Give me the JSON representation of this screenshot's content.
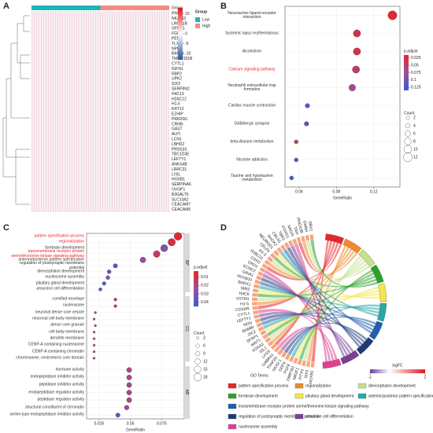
{
  "chart_data": [
    {
      "type": "heatmap",
      "label": "A",
      "rows": [
        "PRG4",
        "NKAIN3",
        "LRRC17",
        "GFRA1",
        "FGF8",
        "PENK",
        "TLX1",
        "NPPC",
        "BAMBI",
        "TMEM151B",
        "CYTL1",
        "IGFN1",
        "RBP2",
        "UPK2",
        "SIX3",
        "SERPINI2",
        "H4C13",
        "H2AC12",
        "H1-5",
        "KRT12",
        "EZHIP",
        "PRR20G",
        "CRNN",
        "GAST",
        "ALPI",
        "LCN1",
        "LBHD2",
        "PRSS33",
        "TBC1D3E",
        "LEFTY1",
        "ANKS4B",
        "LRRC31",
        "LY6L",
        "HOXB1",
        "SERPINA6",
        "OVGP1",
        "B3GALT5",
        "SLC13A2",
        "CEACAM7",
        "CEACAM5"
      ],
      "annotation": "Group",
      "legend_title": "Group",
      "groups": [
        {
          "name": "Low",
          "color": "#1fb4b5"
        },
        {
          "name": "High",
          "color": "#f28c84"
        }
      ],
      "clim": [
        -13,
        13
      ],
      "color_ticks": [
        10,
        5,
        0,
        -5,
        -10
      ]
    },
    {
      "type": "dot",
      "label": "B",
      "xlabel": "GeneRatio",
      "xlim": [
        0.025,
        0.148
      ],
      "xticks": [
        0.04,
        0.08,
        0.12
      ],
      "categories": [
        "Neuroactive ligand-receptor interaction",
        "Systemic lupus erythematosus",
        "Alcoholism",
        "Calcium signaling pathway",
        "Neutrophil extracellular trap formation",
        "Cardiac muscle contraction",
        "GABAergic synapse",
        "beta-Alanine metabolism",
        "Nicotine addiction",
        "Taurine and hypotaurine metabolism"
      ],
      "category_colors": [
        "#333",
        "#333",
        "#333",
        "#e8262a",
        "#333",
        "#333",
        "#333",
        "#333",
        "#333",
        "#333"
      ],
      "values": [
        0.14,
        0.102,
        0.102,
        0.101,
        0.097,
        0.049,
        0.048,
        0.037,
        0.037,
        0.032
      ],
      "counts": [
        12,
        9,
        9,
        9,
        8,
        4,
        4,
        3,
        3,
        3
      ],
      "padj": [
        0.01,
        0.03,
        0.03,
        0.05,
        0.07,
        0.12,
        0.12,
        0.06,
        0.12,
        0.13
      ],
      "color_title": "p.adjust",
      "clim": [
        0.015,
        0.135
      ],
      "color_ticks": [
        0.025,
        0.05,
        0.075,
        0.1,
        0.125
      ],
      "size_title": "Count",
      "size_ticks": [
        2,
        4,
        6,
        8,
        10,
        12
      ]
    },
    {
      "type": "dot-facet",
      "label": "C",
      "xlabel": "GeneRatio",
      "xlim": [
        0.015,
        0.093
      ],
      "xticks": [
        0.025,
        0.05,
        0.075
      ],
      "facets": [
        {
          "name": "BP",
          "categories": [
            "pattern specification process",
            "regionalization",
            "forebrain development",
            "transmembrane receptor protein serine/threonine kinase signaling pathway",
            "anterior/posterior pattern specification",
            "regulation of postsynaptic membrane potential",
            "diencephalon development",
            "nucleosome assembly",
            "pituitary gland development",
            "amacrine cell differentiation"
          ],
          "category_colors": [
            "#e8262a",
            "#e8262a",
            "#333",
            "#e8262a",
            "#333",
            "#333",
            "#333",
            "#333",
            "#333",
            "#333"
          ],
          "values": [
            0.088,
            0.083,
            0.077,
            0.071,
            0.06,
            0.038,
            0.033,
            0.032,
            0.029,
            0.026
          ],
          "counts": [
            18,
            17,
            16,
            15,
            12,
            8,
            7,
            7,
            6,
            5
          ],
          "padj": [
            0.004,
            0.008,
            0.03,
            0.012,
            0.025,
            0.04,
            0.035,
            0.03,
            0.042,
            0.04
          ]
        },
        {
          "name": "CC",
          "categories": [
            "cornified envelope",
            "nucleosome",
            "neuronal dense core vesicle",
            "neuronal cell body membrane",
            "dense core granule",
            "cell body membrane",
            "dendrite membrane",
            "CENP-A containing nucleosome",
            "CENP-A containing chromatin",
            "chromosome, centromeric core domain"
          ],
          "category_colors": [
            "#333",
            "#333",
            "#333",
            "#333",
            "#333",
            "#333",
            "#333",
            "#333",
            "#333",
            "#333"
          ],
          "values": [
            0.038,
            0.038,
            0.022,
            0.021,
            0.022,
            0.021,
            0.021,
            0.021,
            0.021,
            0.021
          ],
          "counts": [
            4,
            4,
            2,
            2,
            2,
            2,
            2,
            2,
            2,
            2
          ],
          "padj": [
            0.012,
            0.012,
            0.02,
            0.02,
            0.02,
            0.02,
            0.02,
            0.02,
            0.02,
            0.02
          ]
        },
        {
          "name": "MF",
          "categories": [
            "hormone activity",
            "endopeptidase inhibitor activity",
            "peptidase inhibitor activity",
            "endopeptidase regulator activity",
            "peptidase regulator activity",
            "structural constituent of chromatin",
            "serine-type endopeptidase inhibitor activity"
          ],
          "category_colors": [
            "#333",
            "#333",
            "#333",
            "#333",
            "#333",
            "#333",
            "#333"
          ],
          "values": [
            0.049,
            0.049,
            0.049,
            0.049,
            0.049,
            0.047,
            0.04
          ],
          "counts": [
            10,
            10,
            10,
            10,
            10,
            9,
            8
          ],
          "padj": [
            0.02,
            0.02,
            0.02,
            0.02,
            0.02,
            0.022,
            0.04
          ]
        }
      ],
      "color_title": "p.adjust",
      "clim": [
        0.003,
        0.045
      ],
      "color_ticks": [
        0.01,
        0.02,
        0.03,
        0.04
      ],
      "size_title": "Count",
      "size_ticks": [
        3,
        6,
        9,
        12,
        15,
        18
      ]
    },
    {
      "type": "chord",
      "label": "D",
      "genes": [
        "HOXB1",
        "SIX3",
        "PITX1",
        "NR2F1",
        "DMRTA2",
        "FGF8",
        "GDF6",
        "NKX2-1",
        "TFAP2D",
        "GABRA1",
        "LHX9",
        "ISL1",
        "FOXA2",
        "WNT1",
        "SFRP1",
        "ZIC2",
        "BAMBI",
        "NOG",
        "LEFTY1",
        "CYTL1",
        "CCKAR",
        "H1-5",
        "SSTR4",
        "H4C6",
        "SIM2",
        "BARX1",
        "HOXB10",
        "GRIA1",
        "KCNC2",
        "DRD1",
        "CDH1",
        "H2BC21",
        "H1-3",
        "CELF4",
        "NEUROD1",
        "SHOX2",
        "CBLN1",
        "TBR1",
        "FOXG1",
        "NRGN",
        "TRH",
        "PHOX2B",
        "GHRH",
        "DBX1"
      ],
      "legend_title": "GO Terms",
      "terms": [
        {
          "name": "pattern specification process",
          "color": "#e8262a",
          "label_color": "#e8262a"
        },
        {
          "name": "regionalization",
          "color": "#f08a2a",
          "label_color": "#e8262a"
        },
        {
          "name": "diencephalon development",
          "color": "#c5e08a",
          "label_color": "#333"
        },
        {
          "name": "forebrain development",
          "color": "#2ca02c",
          "label_color": "#333"
        },
        {
          "name": "pituitary gland development",
          "color": "#f5e64a",
          "label_color": "#333"
        },
        {
          "name": "anterior/posterior pattern specification",
          "color": "#2aa6a6",
          "label_color": "#333"
        },
        {
          "name": "transmembrane receptor protein serine/threonine kinase signaling pathway",
          "color": "#1f5fae",
          "label_color": "#e8262a"
        },
        {
          "name": "regulation of postsynaptic membrane potential",
          "color": "#203a78",
          "label_color": "#333"
        },
        {
          "name": "amacrine cell differentiation",
          "color": "#7b3f99",
          "label_color": "#333"
        },
        {
          "name": "nucleosome assembly",
          "color": "#e0408f",
          "label_color": "#333"
        }
      ],
      "colorbar_title": "logFC",
      "clim": [
        -1,
        2
      ],
      "color_ticks": [
        -1,
        2
      ]
    }
  ]
}
